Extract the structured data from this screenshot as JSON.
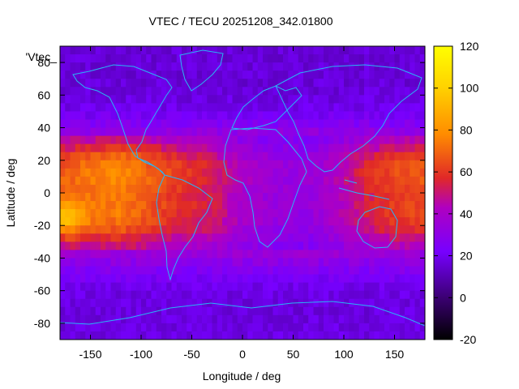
{
  "chart_data": {
    "type": "heatmap",
    "title": "VTEC / TECU 20251208_342.01800",
    "xlabel": "Longitude / deg",
    "ylabel": "Latitude / deg",
    "series_key": "'Vtec_",
    "xlim": [
      -180,
      180
    ],
    "ylim": [
      -90,
      90
    ],
    "x_ticks": [
      -150,
      -100,
      -50,
      0,
      50,
      100,
      150
    ],
    "y_ticks": [
      -80,
      -60,
      -40,
      -20,
      0,
      20,
      40,
      60,
      80
    ],
    "colorbar": {
      "range": [
        -20,
        120
      ],
      "ticks": [
        -20,
        0,
        20,
        40,
        60,
        80,
        100,
        120
      ],
      "palette": [
        "#000000",
        "#3a0070",
        "#7700ff",
        "#b000c0",
        "#e02828",
        "#ff8c00",
        "#ffd200",
        "#ffff00"
      ]
    },
    "grid_step_deg": 5,
    "latitude_profile": [
      {
        "lat": -90,
        "vtec": 18
      },
      {
        "lat": -70,
        "vtec": 17
      },
      {
        "lat": -60,
        "vtec": 18
      },
      {
        "lat": -50,
        "vtec": 24
      },
      {
        "lat": -40,
        "vtec": 32
      },
      {
        "lat": -30,
        "vtec": 42
      },
      {
        "lat": -20,
        "vtec": 52
      },
      {
        "lat": -10,
        "vtec": 55
      },
      {
        "lat": 0,
        "vtec": 54
      },
      {
        "lat": 10,
        "vtec": 58
      },
      {
        "lat": 20,
        "vtec": 55
      },
      {
        "lat": 30,
        "vtec": 42
      },
      {
        "lat": 40,
        "vtec": 28
      },
      {
        "lat": 50,
        "vtec": 20
      },
      {
        "lat": 60,
        "vtec": 17
      },
      {
        "lat": 70,
        "vtec": 16
      },
      {
        "lat": 90,
        "vtec": 16
      }
    ],
    "longitude_modulation": [
      {
        "lon": -180,
        "factor": 1.25
      },
      {
        "lon": -150,
        "factor": 1.45
      },
      {
        "lon": -120,
        "factor": 1.55
      },
      {
        "lon": -90,
        "factor": 1.3
      },
      {
        "lon": -60,
        "factor": 1.1
      },
      {
        "lon": -30,
        "factor": 0.95
      },
      {
        "lon": 0,
        "factor": 0.6
      },
      {
        "lon": 30,
        "factor": 0.45
      },
      {
        "lon": 60,
        "factor": 0.4
      },
      {
        "lon": 90,
        "factor": 0.6
      },
      {
        "lon": 120,
        "factor": 0.95
      },
      {
        "lon": 150,
        "factor": 1.2
      },
      {
        "lon": 180,
        "factor": 1.25
      }
    ],
    "peak": {
      "lon": -175,
      "lat": -15,
      "vtec": 110
    },
    "coastlines": "world continents (overlay)"
  }
}
